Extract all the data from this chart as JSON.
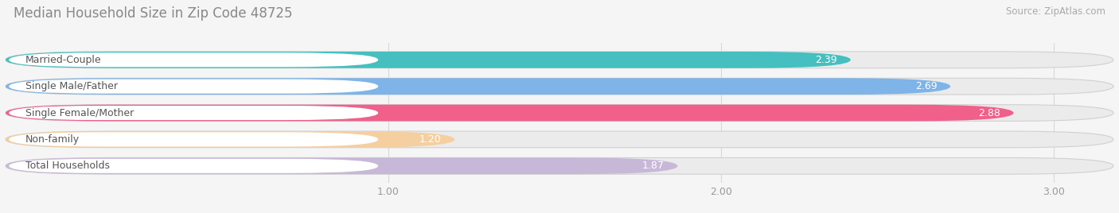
{
  "title": "Median Household Size in Zip Code 48725",
  "source": "Source: ZipAtlas.com",
  "categories": [
    "Married-Couple",
    "Single Male/Father",
    "Single Female/Mother",
    "Non-family",
    "Total Households"
  ],
  "values": [
    2.39,
    2.69,
    2.88,
    1.2,
    1.87
  ],
  "bar_colors": [
    "#45BFBF",
    "#7EB4E8",
    "#F0608A",
    "#F5CFA0",
    "#C8B8D8"
  ],
  "xlim_left": -0.15,
  "xlim_right": 3.18,
  "xticks": [
    1.0,
    2.0,
    3.0
  ],
  "xtick_labels": [
    "1.00",
    "2.00",
    "3.00"
  ],
  "background_color": "#F5F5F5",
  "bar_background_color": "#EBEBEB",
  "title_fontsize": 12,
  "source_fontsize": 8.5,
  "label_fontsize": 9,
  "value_fontsize": 9,
  "bar_height": 0.62,
  "label_pill_color": "#FFFFFF",
  "label_text_color": "#555555",
  "value_text_color": "#FFFFFF",
  "grid_color": "#D8D8D8"
}
